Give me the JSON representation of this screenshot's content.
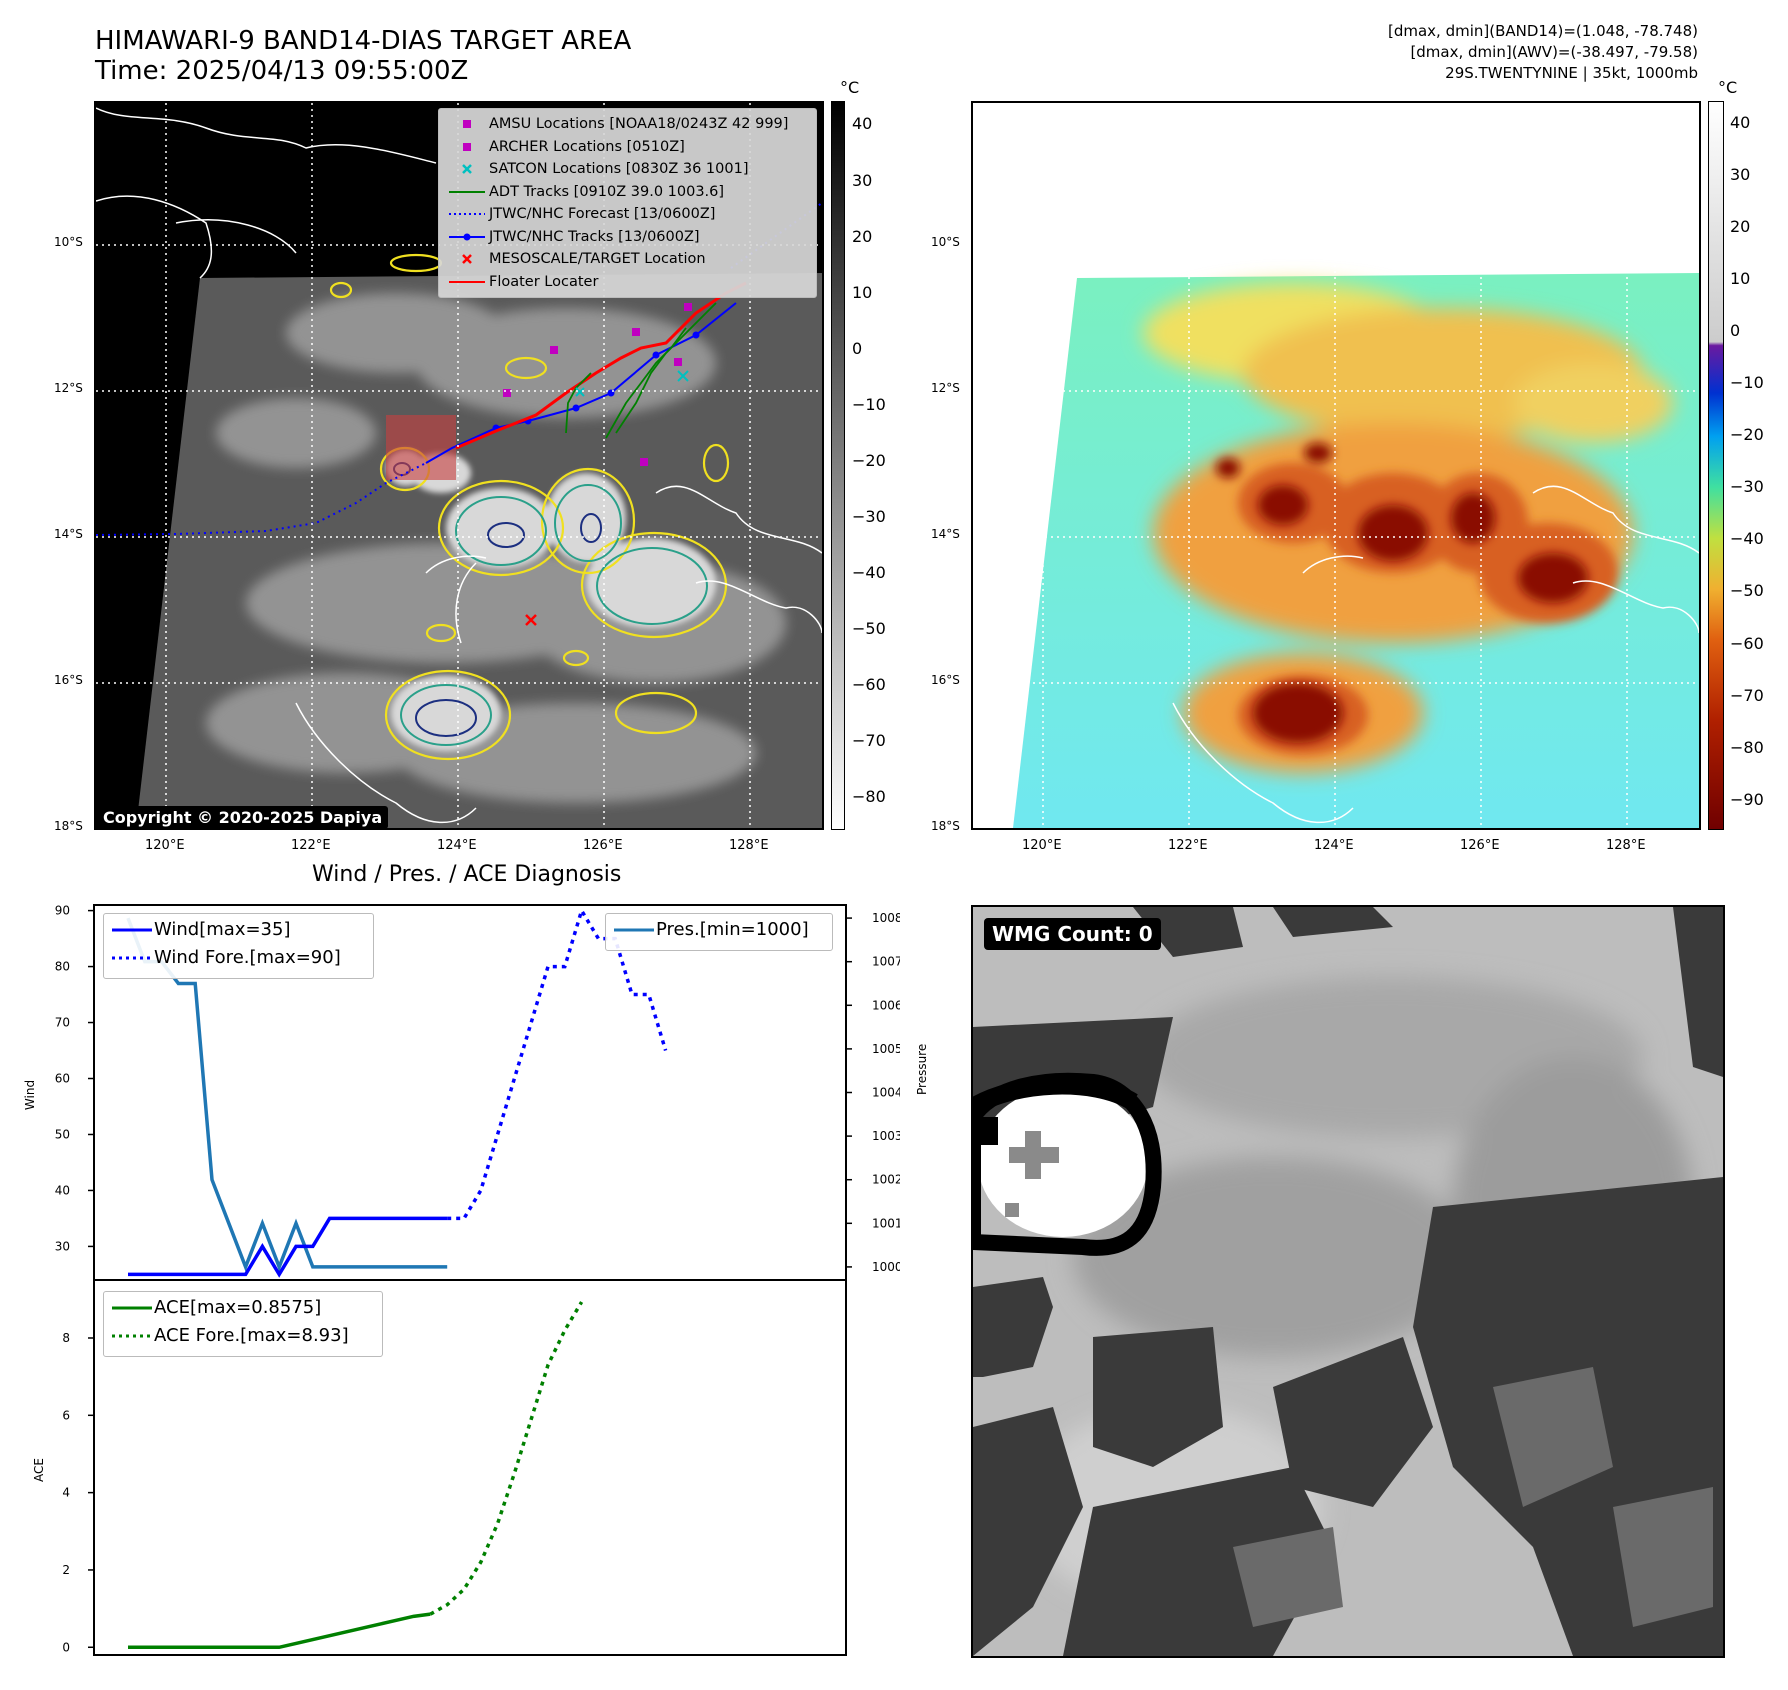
{
  "header": {
    "title_line1": "HIMAWARI-9 BAND14-DIAS TARGET AREA",
    "title_line2": "Time: 2025/04/13 09:55:00Z",
    "info_line1": "[dmax, dmin](BAND14)=(1.048, -78.748)",
    "info_line2": "[dmax, dmin](AWV)=(-38.497, -79.58)",
    "info_line3": "29S.TWENTYNINE | 35kt, 1000mb"
  },
  "map_left": {
    "copyright": "Copyright © 2020-2025 Dapiya",
    "lat_labels": [
      "10°S",
      "12°S",
      "14°S",
      "16°S",
      "18°S"
    ],
    "lon_labels": [
      "120°E",
      "122°E",
      "124°E",
      "126°E",
      "128°E"
    ],
    "legend": [
      {
        "label": "AMSU Locations [NOAA18/0243Z 42 999]",
        "symbol": "square",
        "color": "#c000c0"
      },
      {
        "label": "ARCHER Locations [0510Z]",
        "symbol": "square",
        "color": "#c000c0"
      },
      {
        "label": "SATCON Locations [0830Z 36 1001]",
        "symbol": "x",
        "color": "#00c0c0"
      },
      {
        "label": "ADT Tracks [0910Z 39.0 1003.6]",
        "symbol": "line",
        "color": "#008000"
      },
      {
        "label": "JTWC/NHC Forecast [13/0600Z]",
        "symbol": "dotted",
        "color": "#0000ff"
      },
      {
        "label": "JTWC/NHC Tracks [13/0600Z]",
        "symbol": "line-dot",
        "color": "#0000ff"
      },
      {
        "label": "MESOSCALE/TARGET Location",
        "symbol": "x",
        "color": "#ff0000"
      },
      {
        "label": "Floater Locater",
        "symbol": "line",
        "color": "#ff0000"
      }
    ],
    "colorbar": {
      "unit": "°C",
      "ticks": [
        "40",
        "30",
        "20",
        "10",
        "0",
        "−10",
        "−20",
        "−30",
        "−40",
        "−50",
        "−60",
        "−70",
        "−80"
      ]
    }
  },
  "map_right": {
    "lat_labels": [
      "10°S",
      "12°S",
      "14°S",
      "16°S",
      "18°S"
    ],
    "lon_labels": [
      "120°E",
      "122°E",
      "124°E",
      "126°E",
      "128°E"
    ],
    "colorbar": {
      "unit": "°C",
      "ticks": [
        "40",
        "30",
        "20",
        "10",
        "0",
        "−10",
        "−20",
        "−30",
        "−40",
        "−50",
        "−60",
        "−70",
        "−80",
        "−90"
      ]
    }
  },
  "wmg": {
    "label": "WMG Count: 0"
  },
  "chart_data": [
    {
      "type": "line",
      "title": "Wind / Pres. / ACE Diagnosis",
      "ylabel": "Wind",
      "y2label": "Pressure",
      "ylim": [
        24,
        91
      ],
      "y2lim": [
        999.7,
        1008.3
      ],
      "y_ticks": [
        "90",
        "80",
        "70",
        "60",
        "50",
        "40",
        "30"
      ],
      "y2_ticks": [
        "1008",
        "1007",
        "1006",
        "1005",
        "1004",
        "1003",
        "1002",
        "1001",
        "1000"
      ],
      "series": [
        {
          "name": "Wind[max=35]",
          "color": "#0000ff",
          "style": "solid",
          "values": [
            25,
            25,
            25,
            25,
            25,
            25,
            25,
            25,
            30,
            25,
            30,
            30,
            35,
            35,
            35,
            35,
            35,
            35,
            35,
            35
          ]
        },
        {
          "name": "Wind Fore.[max=90]",
          "color": "#0000ff",
          "style": "dotted",
          "values": [
            35,
            35,
            40,
            50,
            60,
            70,
            80,
            80,
            90,
            85,
            85,
            75,
            75,
            65
          ]
        },
        {
          "name": "Pres.[min=1000]",
          "color": "#1f77b4",
          "style": "solid",
          "axis": "right",
          "values": [
            1008,
            1007,
            1007,
            1006.5,
            1006.5,
            1002,
            1001,
            1000,
            1001,
            1000,
            1001,
            1000,
            1000,
            1000,
            1000,
            1000,
            1000,
            1000,
            1000,
            1000
          ]
        }
      ]
    },
    {
      "type": "line",
      "ylabel": "ACE",
      "ylim": [
        -0.2,
        9.5
      ],
      "y_ticks": [
        "8",
        "6",
        "4",
        "2",
        "0"
      ],
      "series": [
        {
          "name": "ACE[max=0.8575]",
          "color": "#008000",
          "style": "solid",
          "values": [
            0,
            0,
            0,
            0,
            0,
            0,
            0,
            0,
            0,
            0,
            0.1,
            0.2,
            0.3,
            0.4,
            0.5,
            0.6,
            0.7,
            0.8,
            0.8575
          ]
        },
        {
          "name": "ACE Fore.[max=8.93]",
          "color": "#008000",
          "style": "dotted",
          "values": [
            0.8575,
            1.1,
            1.5,
            2.2,
            3.2,
            4.5,
            5.9,
            7.3,
            8.2,
            8.93
          ]
        }
      ]
    }
  ]
}
